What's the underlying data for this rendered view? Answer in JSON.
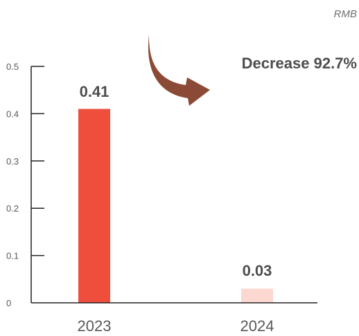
{
  "chart_data": {
    "type": "bar",
    "unit": "RMB",
    "categories": [
      "2023",
      "2024"
    ],
    "values": [
      0.41,
      0.03
    ],
    "data_labels": [
      "0.41",
      "0.03"
    ],
    "bar_colors": [
      "#ef4e3c",
      "#fdd8d0"
    ],
    "ylim": [
      0,
      0.5
    ],
    "yticks": [
      0,
      0.1,
      0.2,
      0.3,
      0.4,
      0.5
    ],
    "ytick_labels": [
      "0",
      "0.1",
      "0.2",
      "0.3",
      "0.4",
      "0.5"
    ],
    "title": "",
    "xlabel": "",
    "ylabel": "",
    "grid": false,
    "annotation": {
      "text": "Decrease 92.7%",
      "icon": "curved-down-arrow-icon",
      "color": "#8b4a35"
    }
  }
}
